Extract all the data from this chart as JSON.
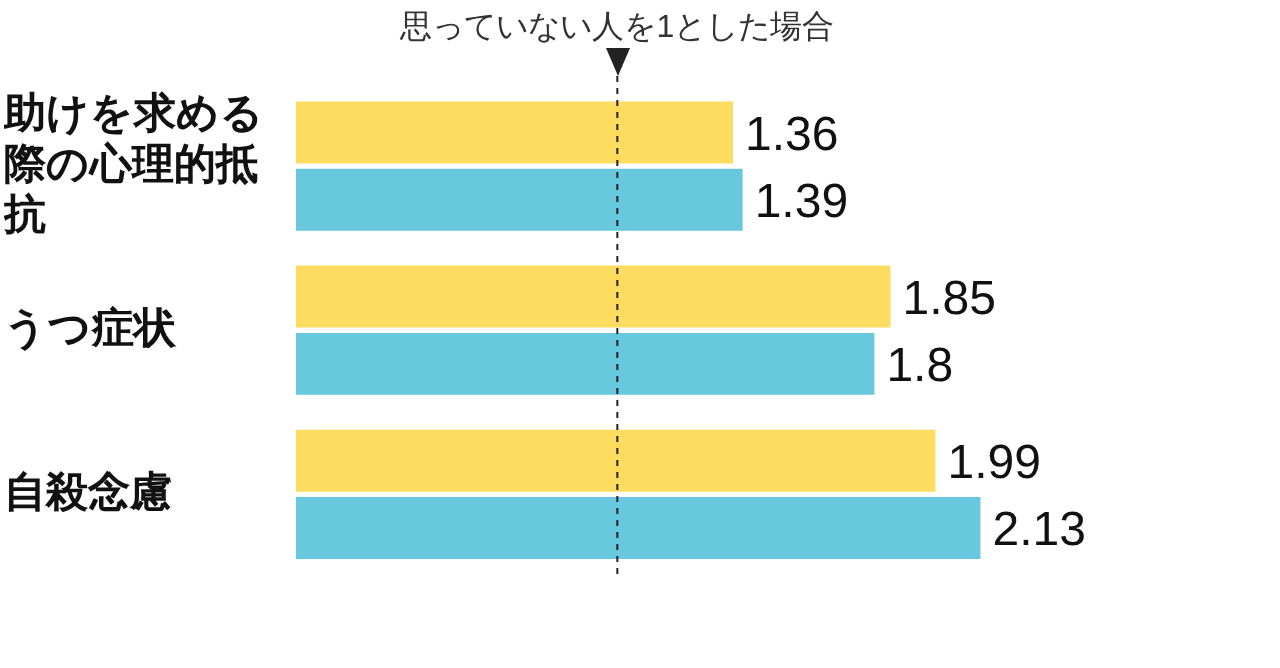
{
  "chart_data": {
    "type": "bar",
    "orientation": "horizontal",
    "categories": [
      "助けを求める際の心理的抵抗",
      "うつ症状",
      "自殺念慮"
    ],
    "series": [
      {
        "color": "#fddc5f",
        "values": [
          1.36,
          1.85,
          1.99
        ]
      },
      {
        "color": "#67c8de",
        "values": [
          1.39,
          1.8,
          2.13
        ]
      }
    ],
    "tick_labels": "y",
    "legend": false,
    "data_labels": true,
    "ref_lines": [
      {
        "axis": "x",
        "value": 1,
        "label": "思っていない人を1とした場合",
        "line_style": "dashed",
        "color": "#222222"
      }
    ]
  }
}
